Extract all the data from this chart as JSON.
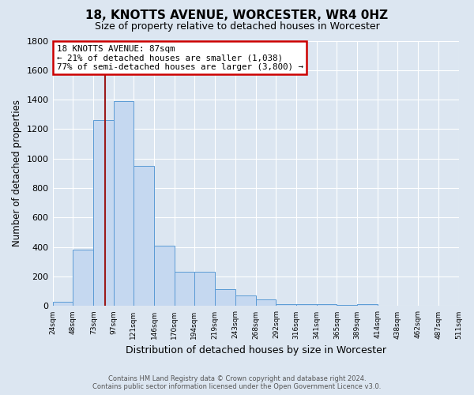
{
  "title": "18, KNOTTS AVENUE, WORCESTER, WR4 0HZ",
  "subtitle": "Size of property relative to detached houses in Worcester",
  "xlabel": "Distribution of detached houses by size in Worcester",
  "ylabel": "Number of detached properties",
  "footer_line1": "Contains HM Land Registry data © Crown copyright and database right 2024.",
  "footer_line2": "Contains public sector information licensed under the Open Government Licence v3.0.",
  "bar_edges": [
    24,
    48,
    73,
    97,
    121,
    146,
    170,
    194,
    219,
    243,
    268,
    292,
    316,
    341,
    365,
    389,
    414,
    438,
    462,
    487,
    511
  ],
  "bar_heights": [
    30,
    385,
    1260,
    1390,
    950,
    410,
    235,
    235,
    115,
    70,
    45,
    15,
    15,
    15,
    10,
    15,
    0,
    0,
    0,
    0
  ],
  "bar_color": "#c5d8f0",
  "bar_edgecolor": "#5b9bd5",
  "bg_color": "#dce6f1",
  "property_size": 87,
  "vline_color": "#9b1b1b",
  "annotation_title": "18 KNOTTS AVENUE: 87sqm",
  "annotation_line1": "← 21% of detached houses are smaller (1,038)",
  "annotation_line2": "77% of semi-detached houses are larger (3,800) →",
  "annotation_box_color": "#ffffff",
  "annotation_box_edgecolor": "#cc0000",
  "ylim": [
    0,
    1800
  ],
  "yticks": [
    0,
    200,
    400,
    600,
    800,
    1000,
    1200,
    1400,
    1600,
    1800
  ]
}
